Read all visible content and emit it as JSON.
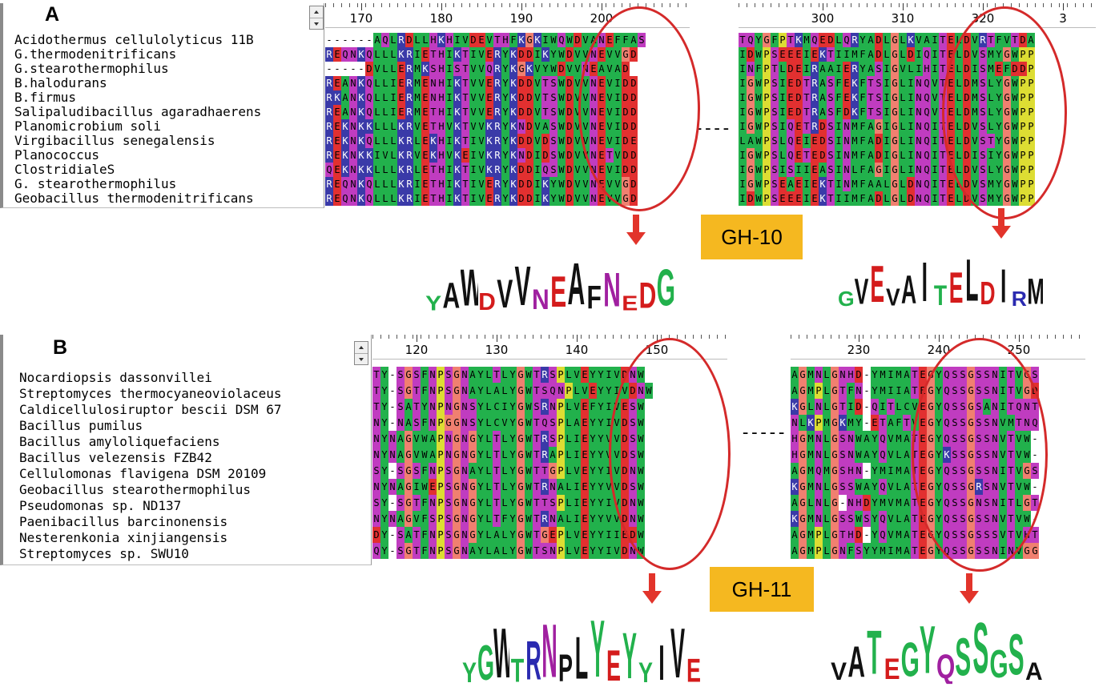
{
  "panelA": {
    "letter": "A",
    "ruler_left": {
      "start": 166,
      "labels": [
        "170",
        "180",
        "190",
        "200"
      ]
    },
    "ruler_right": {
      "start": 290,
      "labels": [
        "300",
        "310",
        "320",
        "3"
      ]
    },
    "names": [
      "Acidothermus cellulolyticus 11B",
      "G.thermodenitrificans",
      "G.stearothermophilus",
      "B.halodurans",
      "B.firmus",
      "Salipaludibacillus agaradhaerens",
      "Planomicrobium soli",
      "Virgibacillus senegalensis",
      "Planococcus",
      "ClostridialeS",
      "G. stearothermophilus",
      "Geobacillus thermodenitrificans"
    ],
    "seqs_left": [
      "------AQLRDLLHKHIVDEVTHFKGKIWQWDVANEFFAS",
      "REQNKQLLLKRIETHIKTIVERYKDDIKYWDVVNEVVGD",
      "-----DVLLERMKSHISTVVQRYKGKVYWDVVNEAVAD",
      "REANKQLLIERMENHIKTVVERYKDDVTSWDVVNEVIDD",
      "RKANKQLLIERMENHIKTVVERYKDDVTSWDVVNEVIDD",
      "REANKQLLIERMETHIKTVVERYKDDVTSWDVVNEVIDD",
      "REKNKKLLLKRVETHVKTVVKRYKNDVASWDVVNEVIDD",
      "REKNKQLLLKRLEKHIKTIVKRYKDDVDSWDVVNEVIDE",
      "REKNKKIVLKRVEKHVKEIVKRYKNDIDSWDVVNETVDD",
      "QEKNKKLLLKRLETHIKTIVKRYKDDIQSWDVVNEVIDD",
      "REQNKQLLLKRIETHIKTIVERYKDDIKYWDVVNEVVGD",
      "REQNKQLLLKRIETHIKTIVERYKDDIKYWDVVNEVVGD"
    ],
    "seqs_right": [
      "TQYGFPTKMQEDLQRYADLGLKVAITELDVRTFVTDA",
      "IDWPSEEEIEKTIIMFADLGLDIQITELDVSMYGWPP",
      "INFPTLDEIRAAIERYASIGVLIHITELDISMEFDDP",
      "IGWPSIEDTRASFEKFTSIGLINQVTELDMSLYGWPP",
      "IGWPSIEDTRASFEKFTSIGLINQVTELDMSLYGWPP",
      "IGWPSIEDTRASFDKFTSIGLINQVTELDMSLYGWPP",
      "IGWPSIQETRDSINMFAGIGLINQITELDVSLYGWPP",
      "LAWPSLQEIEDSINMFADIGLINQITELDVSTYGWPP",
      "IGWPSLQETEDSINMFADIGLINQITELDISIYGWPP",
      "IGWPSISIIEASINLFAGIGLINQITELDVSLYGWPP",
      "IGWPSEAEIEKTINMFAALGLDNQITELDVSMYGWPP",
      "IDWPSEEEIEKTIIMFADLGLDNQITELDVSMYGWPP"
    ],
    "gh_label": "GH-10",
    "logo_left": [
      "Y",
      "A",
      "W",
      "D",
      "V",
      "V",
      "N",
      "E",
      "A",
      "F",
      "N",
      "E",
      "D",
      "G"
    ],
    "logo_right": [
      "G",
      "V",
      "E",
      "V",
      "A",
      "I",
      "T",
      "E",
      "L",
      "D",
      "I",
      "R",
      "M"
    ]
  },
  "panelB": {
    "letter": "B",
    "ruler_left": {
      "start": 115,
      "labels": [
        "120",
        "130",
        "140",
        "150"
      ]
    },
    "ruler_right": {
      "start": 222,
      "labels": [
        "230",
        "240",
        "250"
      ]
    },
    "names": [
      "Nocardiopsis dassonvillei",
      "Streptomyces thermocyaneoviolaceus",
      "Caldicellulosiruptor bescii DSM 67",
      "Bacillus pumilus",
      "Bacillus amyloliquefaciens",
      "Bacillus velezensis FZB42",
      "Cellulomonas flavigena DSM 20109",
      "Geobacillus stearothermophilus",
      "Pseudomonas sp. ND137",
      "Paenibacillus barcinonensis",
      "Nesterenkonia xinjiangensis",
      "Streptomyces sp. SWU10"
    ],
    "seqs_left": [
      "TY-SGSFNPSGNAYLTLYGWTRSPLVEYYIVDNW",
      "TY-SGTFNPSGNAYLALYGWTSQNPLVEYYIVDNW",
      "TY-SATYNPNGNSYLCIYGWSRNPLVEFYIVESW",
      "NY-NASFNPGGNSYLCVYGWTQSPLAEYYIVDSW",
      "NYNAGVWAPNGNGYLTLYGWTRSPLIEYYVVDSW",
      "NYNAGVWAPNGNGYLTLYGWTRAPLIEYYVVDSW",
      "SY-SGSFNPSGNAYLTLYGWTTGPLVEYYIVDNW",
      "NYNAGIWEPSGNGYLTLYGWTRNALIEYYVVDSW",
      "SY-SGTFNPSGNGYLTLYGWTTSPLIEYYIVDNW",
      "NYNAGVFSPSGNGYLTFYGWTRNALIEYYVVDNW",
      "DY-SATFNPSGNGYLALYGWTGEPLVEYYIIEDW",
      "QY-SGTFNPSGNAYLALYGWTSNPLVEYYIVDNW"
    ],
    "seqs_right": [
      "AGMNLGNHD-YMIMATEGYQSSGSSNITVGS",
      "AGMPLGTFN-YMIIATEGYQSSGSSNITVGD",
      "KGLNLGTID-QITLCVEGYQSSGSANITQNT",
      "NLKPMGKMY-ETAFTVEGYQSSGSSNVMTNQ",
      "HGMNLGSNWAYQVMATEGYQSSGSSNVTVW-",
      "HGMNLGSNWAYQVLATEGYKSSGSSNVTVW-",
      "AGMQMGSHN-YMIMATEGYQSSGSSNITVGS",
      "KGMNLGSSWAYQVLATEGYQSSGRSNVTVW-",
      "AGLNLG-NHDYMVMATEGYQSSGNSNITLGT",
      "KGMNLGSSWSYQVLATEGYQSSGSSNVTVW-",
      "AGMPLGTHD-YQVMATEGYQSSGSSSVTVHT",
      "AGMPLGNFSYYMIMATEGYQSSGSSNINVGG"
    ],
    "gh_label": "GH-11",
    "logo_left": [
      "Y",
      "G",
      "W",
      "T",
      "R",
      "N",
      "P",
      "L",
      "Y",
      "E",
      "Y",
      "Y",
      "I",
      "V",
      "E"
    ],
    "logo_right": [
      "V",
      "A",
      "T",
      "E",
      "G",
      "Y",
      "Q",
      "S",
      "S",
      "G",
      "S",
      "A"
    ]
  },
  "colors": {
    "hydrophobic": "#22b14c",
    "acidic": "#e23030",
    "basic": "#3a3aa8",
    "polar": "#c03cc0",
    "aromatic_y": "#ffff44",
    "gly": "#f08070",
    "pro": "#dddd33",
    "annot": "#d42a2a",
    "label_bg": "#f5b820"
  }
}
